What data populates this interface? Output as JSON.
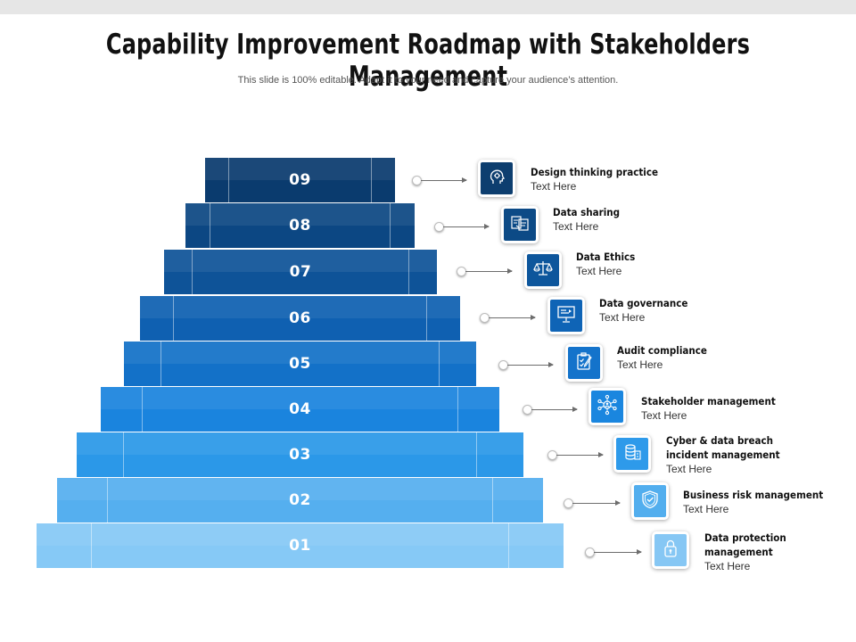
{
  "title": "Capability Improvement Roadmap with Stakeholders Management",
  "subtitle": "This slide is 100% editable. Adapt it to your need and capture your audience’s attention.",
  "steps": [
    {
      "number": "09",
      "color": "#0a3b6e",
      "heading": "Design thinking practice",
      "text": "Text Here",
      "icon": "head-gear-icon",
      "icon_color": "#0d3e6f"
    },
    {
      "number": "08",
      "color": "#0c4783",
      "heading": "Data sharing",
      "text": "Text Here",
      "icon": "data-sharing-icon",
      "icon_color": "#0c4a86"
    },
    {
      "number": "07",
      "color": "#0e5398",
      "heading": "Data Ethics",
      "text": "Text Here",
      "icon": "scale-icon",
      "icon_color": "#0d569c"
    },
    {
      "number": "06",
      "color": "#0f60b1",
      "heading": "Data governance",
      "text": "Text Here",
      "icon": "board-icon",
      "icon_color": "#0f64b6"
    },
    {
      "number": "05",
      "color": "#1371c8",
      "heading": "Audit compliance",
      "text": "Text Here",
      "icon": "clipboard-check-icon",
      "icon_color": "#1473cb"
    },
    {
      "number": "04",
      "color": "#1a84de",
      "heading": "Stakeholder management",
      "text": "Text Here",
      "icon": "network-people-icon",
      "icon_color": "#1a86df"
    },
    {
      "number": "03",
      "color": "#2b98e8",
      "heading": "Cyber & data breach\nincident management",
      "text": "Text Here",
      "icon": "database-icon",
      "icon_color": "#2e9aea"
    },
    {
      "number": "02",
      "color": "#55afef",
      "heading": "Business risk management",
      "text": "Text Here",
      "icon": "shield-check-icon",
      "icon_color": "#52aeee"
    },
    {
      "number": "01",
      "color": "#86c9f6",
      "heading": "Data protection\nmanagement",
      "text": "Text Here",
      "icon": "lock-icon",
      "icon_color": "#86c7f4"
    }
  ]
}
